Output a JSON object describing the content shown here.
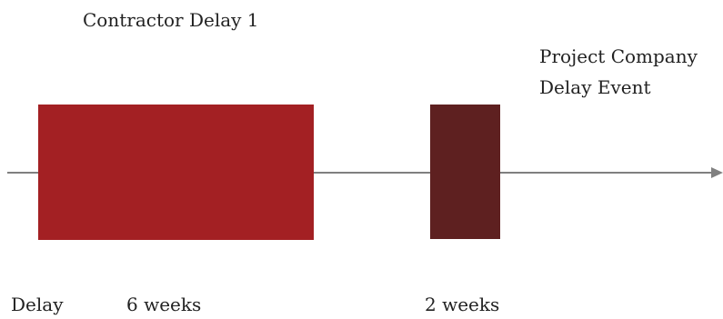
{
  "diagram": {
    "events": [
      {
        "label": "Contractor Delay 1",
        "duration_label": "6 weeks",
        "color": "#A32023"
      },
      {
        "label_line1": "Project Company",
        "label_line2": "Delay Event",
        "duration_label": "2 weeks",
        "color": "#5E2020"
      }
    ],
    "row_label": "Delay",
    "timeline_color": "#808080"
  }
}
